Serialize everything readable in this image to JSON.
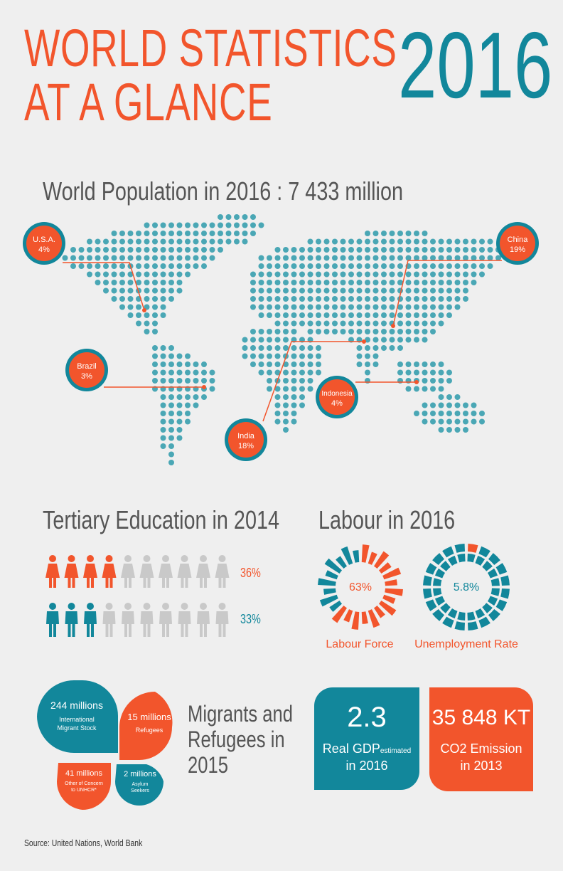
{
  "header": {
    "title_line1": "WORLD STATISTICS",
    "title_line2": "AT A GLANCE",
    "year": "2016"
  },
  "population": {
    "heading": "World Population in 2016 :  7 433 million",
    "markers": [
      {
        "name": "U.S.A.",
        "pct": "4%"
      },
      {
        "name": "China",
        "pct": "19%"
      },
      {
        "name": "Brazil",
        "pct": "3%"
      },
      {
        "name": "Indonesia",
        "pct": "4%"
      },
      {
        "name": "India",
        "pct": "18%"
      }
    ]
  },
  "education": {
    "heading": "Tertiary Education in 2014",
    "female_pct": "36%",
    "male_pct": "33%",
    "female_value": 0.36,
    "male_value": 0.33
  },
  "labour": {
    "heading": "Labour in 2016",
    "force_value": "63%",
    "force_label": "Labour Force",
    "unemployment_value": "5.8%",
    "unemployment_label": "Unemployment Rate"
  },
  "migrants": {
    "heading_line1": "Migrants and",
    "heading_line2": "Refugees in",
    "heading_line3": "2015",
    "items": [
      {
        "value": "244 millions",
        "label1": "International",
        "label2": "Migrant Stock"
      },
      {
        "value": "15 millions",
        "label1": "Refugees",
        "label2": ""
      },
      {
        "value": "41 millions",
        "label1": "Other of Concern",
        "label2": "to UNHCR*"
      },
      {
        "value": "2 millions",
        "label1": "Asylum",
        "label2": "Seekers"
      }
    ]
  },
  "gdp": {
    "value": "2.3",
    "label_main": "Real GDP",
    "label_sub": "estimated",
    "label_year": "in 2016"
  },
  "co2": {
    "value": "35 848 KT",
    "label1": "CO2 Emission",
    "label2": "in 2013"
  },
  "source": "Source: United Nations, World Bank",
  "colors": {
    "orange": "#f2552c",
    "teal": "#12879b",
    "grey": "#c9c9c9"
  }
}
